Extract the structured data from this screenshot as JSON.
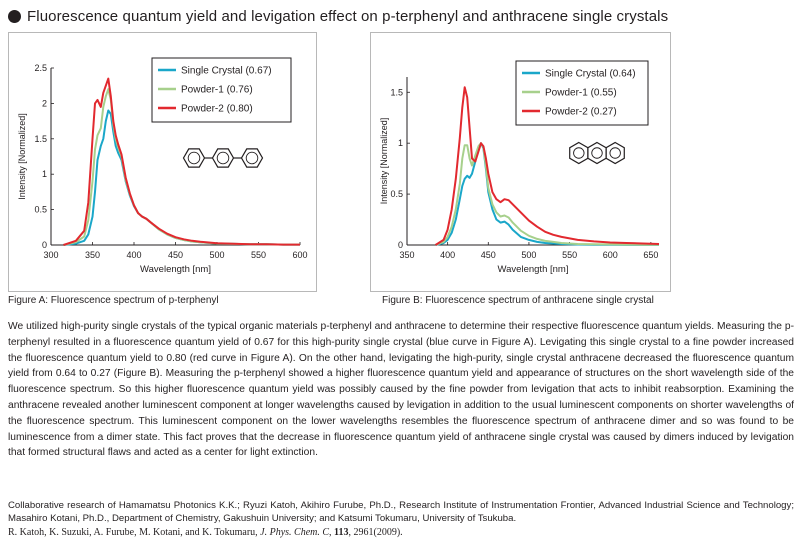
{
  "heading": "Fluorescence quantum yield and levigation effect on p-terphenyl and anthracene single crystals",
  "colors": {
    "single": "#1aa7c9",
    "powder1": "#a7d08c",
    "powder2": "#e2292f"
  },
  "chart_data": [
    {
      "type": "line",
      "id": "A",
      "xlabel": "Wavelength [nm]",
      "ylabel": "Intensity [Normalized]",
      "xlim": [
        300,
        600
      ],
      "ylim": [
        0,
        2.5
      ],
      "xticks": [
        300,
        350,
        400,
        450,
        500,
        550,
        600
      ],
      "yticks": [
        0,
        0.5,
        1,
        1.5,
        2,
        2.5
      ],
      "ytick_labels": [
        "0",
        "0.5",
        "1",
        "1.5",
        "2",
        "2.5"
      ],
      "legend": "top-right",
      "grid": false,
      "structure_icon": "p-terphenyl-structure-icon",
      "series": [
        {
          "name": "Single Crystal (0.67)",
          "color": "#1aa7c9",
          "x": [
            315,
            330,
            340,
            345,
            350,
            353,
            356,
            360,
            363,
            366,
            369,
            372,
            375,
            378,
            381,
            385,
            390,
            395,
            400,
            405,
            410,
            415,
            420,
            430,
            440,
            450,
            460,
            470,
            480,
            490,
            500,
            520,
            540,
            560,
            580,
            600
          ],
          "y": [
            0,
            0.02,
            0.06,
            0.15,
            0.4,
            0.75,
            1.2,
            1.4,
            1.5,
            1.75,
            1.9,
            1.85,
            1.6,
            1.4,
            1.3,
            1.2,
            0.9,
            0.7,
            0.55,
            0.45,
            0.4,
            0.37,
            0.32,
            0.22,
            0.15,
            0.1,
            0.07,
            0.05,
            0.04,
            0.03,
            0.02,
            0.015,
            0.01,
            0.01,
            0.005,
            0.005
          ]
        },
        {
          "name": "Powder-1 (0.76)",
          "color": "#a7d08c",
          "x": [
            315,
            330,
            340,
            345,
            350,
            353,
            356,
            360,
            363,
            366,
            369,
            372,
            375,
            378,
            381,
            385,
            390,
            395,
            400,
            405,
            410,
            415,
            420,
            430,
            440,
            450,
            460,
            470,
            480,
            490,
            500,
            520,
            540,
            560,
            580,
            600
          ],
          "y": [
            0,
            0.04,
            0.12,
            0.35,
            0.9,
            1.35,
            1.55,
            1.65,
            1.95,
            2.1,
            2.2,
            2.05,
            1.7,
            1.5,
            1.38,
            1.25,
            0.92,
            0.72,
            0.56,
            0.45,
            0.4,
            0.37,
            0.32,
            0.22,
            0.15,
            0.1,
            0.07,
            0.05,
            0.04,
            0.03,
            0.02,
            0.015,
            0.01,
            0.01,
            0.005,
            0.005
          ]
        },
        {
          "name": "Powder-2 (0.80)",
          "color": "#e2292f",
          "x": [
            315,
            330,
            340,
            345,
            350,
            353,
            356,
            360,
            363,
            366,
            369,
            372,
            375,
            378,
            381,
            385,
            390,
            395,
            400,
            405,
            410,
            415,
            420,
            430,
            440,
            450,
            460,
            470,
            480,
            490,
            500,
            520,
            540,
            560,
            580,
            600
          ],
          "y": [
            0,
            0.06,
            0.2,
            0.6,
            1.5,
            2.0,
            2.05,
            1.95,
            2.15,
            2.25,
            2.35,
            2.1,
            1.75,
            1.55,
            1.42,
            1.28,
            0.95,
            0.73,
            0.56,
            0.45,
            0.4,
            0.37,
            0.32,
            0.23,
            0.16,
            0.11,
            0.08,
            0.06,
            0.045,
            0.035,
            0.025,
            0.018,
            0.012,
            0.01,
            0.006,
            0.005
          ]
        }
      ]
    },
    {
      "type": "line",
      "id": "B",
      "xlabel": "Wavelength [nm]",
      "ylabel": "Intensity [Normalized]",
      "xlim": [
        350,
        660
      ],
      "ylim": [
        0,
        1.65
      ],
      "xticks": [
        350,
        400,
        450,
        500,
        550,
        600,
        650
      ],
      "yticks": [
        0,
        0.5,
        1,
        1.5
      ],
      "ytick_labels": [
        "0",
        "0.5",
        "1",
        "1.5"
      ],
      "legend": "top-right",
      "grid": false,
      "structure_icon": "anthracene-structure-icon",
      "series": [
        {
          "name": "Single Crystal (0.64)",
          "color": "#1aa7c9",
          "x": [
            385,
            395,
            400,
            405,
            410,
            415,
            418,
            421,
            424,
            427,
            430,
            434,
            438,
            441,
            444,
            447,
            450,
            455,
            460,
            465,
            470,
            475,
            480,
            490,
            500,
            510,
            520,
            530,
            540,
            560,
            580,
            600,
            620,
            640,
            660
          ],
          "y": [
            0,
            0.02,
            0.05,
            0.12,
            0.25,
            0.45,
            0.58,
            0.65,
            0.68,
            0.66,
            0.7,
            0.82,
            0.95,
            1.0,
            0.95,
            0.75,
            0.52,
            0.35,
            0.25,
            0.22,
            0.23,
            0.2,
            0.15,
            0.08,
            0.05,
            0.03,
            0.02,
            0.015,
            0.01,
            0.005,
            0.003,
            0.002,
            0.001,
            0.001,
            0.001
          ]
        },
        {
          "name": "Powder-1 (0.55)",
          "color": "#a7d08c",
          "x": [
            385,
            395,
            400,
            405,
            410,
            415,
            418,
            421,
            424,
            427,
            430,
            434,
            438,
            441,
            444,
            447,
            450,
            455,
            460,
            465,
            470,
            475,
            480,
            490,
            500,
            510,
            520,
            530,
            540,
            560,
            580,
            600,
            620,
            640,
            660
          ],
          "y": [
            0,
            0.03,
            0.08,
            0.18,
            0.35,
            0.6,
            0.85,
            0.98,
            0.98,
            0.85,
            0.78,
            0.88,
            0.97,
            1.0,
            0.96,
            0.78,
            0.56,
            0.4,
            0.32,
            0.28,
            0.29,
            0.27,
            0.22,
            0.14,
            0.09,
            0.06,
            0.04,
            0.03,
            0.02,
            0.01,
            0.008,
            0.006,
            0.004,
            0.003,
            0.002
          ]
        },
        {
          "name": "Powder-2 (0.27)",
          "color": "#e2292f",
          "x": [
            385,
            395,
            400,
            405,
            410,
            415,
            418,
            421,
            424,
            427,
            430,
            434,
            438,
            441,
            444,
            447,
            450,
            455,
            460,
            465,
            470,
            475,
            480,
            490,
            500,
            510,
            520,
            530,
            540,
            560,
            580,
            600,
            620,
            640,
            660
          ],
          "y": [
            0,
            0.05,
            0.15,
            0.35,
            0.65,
            1.05,
            1.35,
            1.55,
            1.45,
            1.15,
            0.85,
            0.82,
            0.92,
            1.0,
            0.97,
            0.85,
            0.7,
            0.52,
            0.45,
            0.42,
            0.45,
            0.44,
            0.4,
            0.32,
            0.24,
            0.18,
            0.13,
            0.1,
            0.08,
            0.05,
            0.035,
            0.025,
            0.02,
            0.015,
            0.01
          ]
        }
      ]
    }
  ],
  "captions": {
    "figA": "Figure A: Fluorescence spectrum of p-terphenyl",
    "figB": "Figure B: Fluorescence spectrum of anthracene single crystal"
  },
  "body_paragraph": "We utilized high-purity single crystals of the typical organic materials p-terphenyl and anthracene to determine their respective fluorescence quantum yields. Measuring the p-terphenyl resulted in a fluorescence quantum yield of 0.67 for this high-purity single crystal (blue curve in Figure A). Levigating this single crystal to a fine powder increased the fluorescence quantum yield to 0.80 (red curve in Figure A). On the other hand, levigating the high-purity, single crystal anthracene decreased the fluorescence quantum yield from 0.64 to 0.27 (Figure B). Measuring the p-terphenyl showed a higher fluorescence quantum yield and appearance of structures on the short wavelength side of the fluorescence spectrum. So this higher fluorescence quantum yield was possibly caused by the fine powder from levigation that acts to inhibit reabsorption. Examining the anthracene revealed another luminescent component at longer wavelengths caused by levigation in addition to the usual luminescent components on shorter wavelengths of the fluorescence spectrum. This luminescent component on the lower wavelengths resembles the fluorescence spectrum of anthracene dimer and so was found to be luminescence from a dimer state. This fact proves that the decrease in fluorescence quantum yield of anthracene single crystal was caused by dimers induced by levigation that formed structural flaws and acted as a center for light extinction.",
  "credits": "Collaborative research of Hamamatsu Photonics K.K.; Ryuzi Katoh, Akihiro Furube, Ph.D., Research Institute of Instrumentation Frontier, Advanced Industrial Science and Technology; Masahiro Kotani, Ph.D., Department of Chemistry, Gakushuin University; and Katsumi Tokumaru, University of Tsukuba.",
  "reference": {
    "authors": "R. Katoh, K. Suzuki, A. Furube, M. Kotani, and K. Tokumaru, ",
    "journal": "J. Phys. Chem. C",
    "volume": "113",
    "pages": ", 2961(2009)."
  }
}
